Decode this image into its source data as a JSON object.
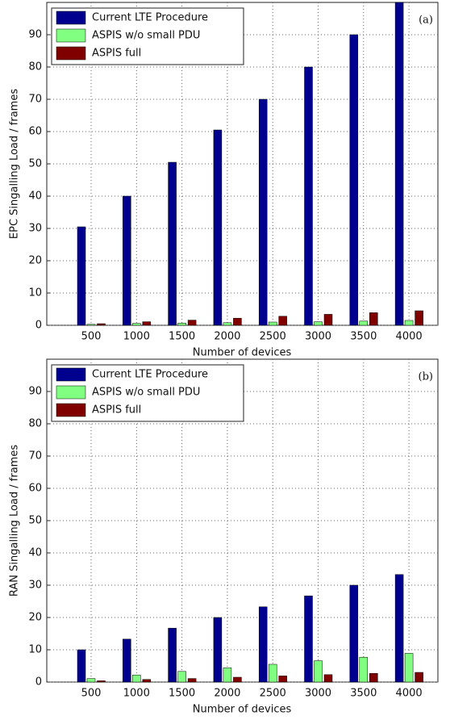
{
  "chart_data": [
    {
      "type": "bar",
      "annotation": "(a)",
      "y_label": "EPC Singalling Load / frames",
      "x_label": "Number of devices",
      "categories": [
        "500",
        "1000",
        "1500",
        "2000",
        "2500",
        "3000",
        "3500",
        "4000"
      ],
      "series": [
        {
          "name": "Current LTE Procedure",
          "color": "#00008f",
          "values": [
            30.5,
            40,
            50.5,
            60.5,
            70,
            80,
            90,
            100
          ]
        },
        {
          "name": "ASPIS w/o small PDU",
          "color": "#80ff80",
          "values": [
            0.3,
            0.6,
            0.7,
            0.8,
            1.0,
            1.1,
            1.3,
            1.5
          ]
        },
        {
          "name": "ASPIS  full",
          "color": "#800000",
          "values": [
            0.5,
            1.1,
            1.6,
            2.2,
            2.8,
            3.4,
            3.9,
            4.5
          ]
        }
      ],
      "ylim": [
        0,
        100
      ],
      "yticks": [
        0,
        10,
        20,
        30,
        40,
        50,
        60,
        70,
        80,
        90
      ],
      "grid": true,
      "legend": "upper left"
    },
    {
      "type": "bar",
      "annotation": "(b)",
      "y_label": "RAN Singalling Load / frames",
      "x_label": "Number of devices",
      "categories": [
        "500",
        "1000",
        "1500",
        "2000",
        "2500",
        "3000",
        "3500",
        "4000"
      ],
      "series": [
        {
          "name": "Current LTE Procedure",
          "color": "#00008f",
          "values": [
            10,
            13.3,
            16.7,
            20,
            23.3,
            26.7,
            30,
            33.3
          ]
        },
        {
          "name": "ASPIS w/o small PDU",
          "color": "#80ff80",
          "values": [
            1.1,
            2.2,
            3.3,
            4.4,
            5.5,
            6.6,
            7.7,
            8.9
          ]
        },
        {
          "name": "ASPIS  full",
          "color": "#800000",
          "values": [
            0.4,
            0.8,
            1.1,
            1.5,
            1.9,
            2.3,
            2.7,
            3.0
          ]
        }
      ],
      "ylim": [
        0,
        100
      ],
      "yticks": [
        0,
        10,
        20,
        30,
        40,
        50,
        60,
        70,
        80,
        90
      ],
      "grid": true,
      "legend": "upper left"
    }
  ]
}
